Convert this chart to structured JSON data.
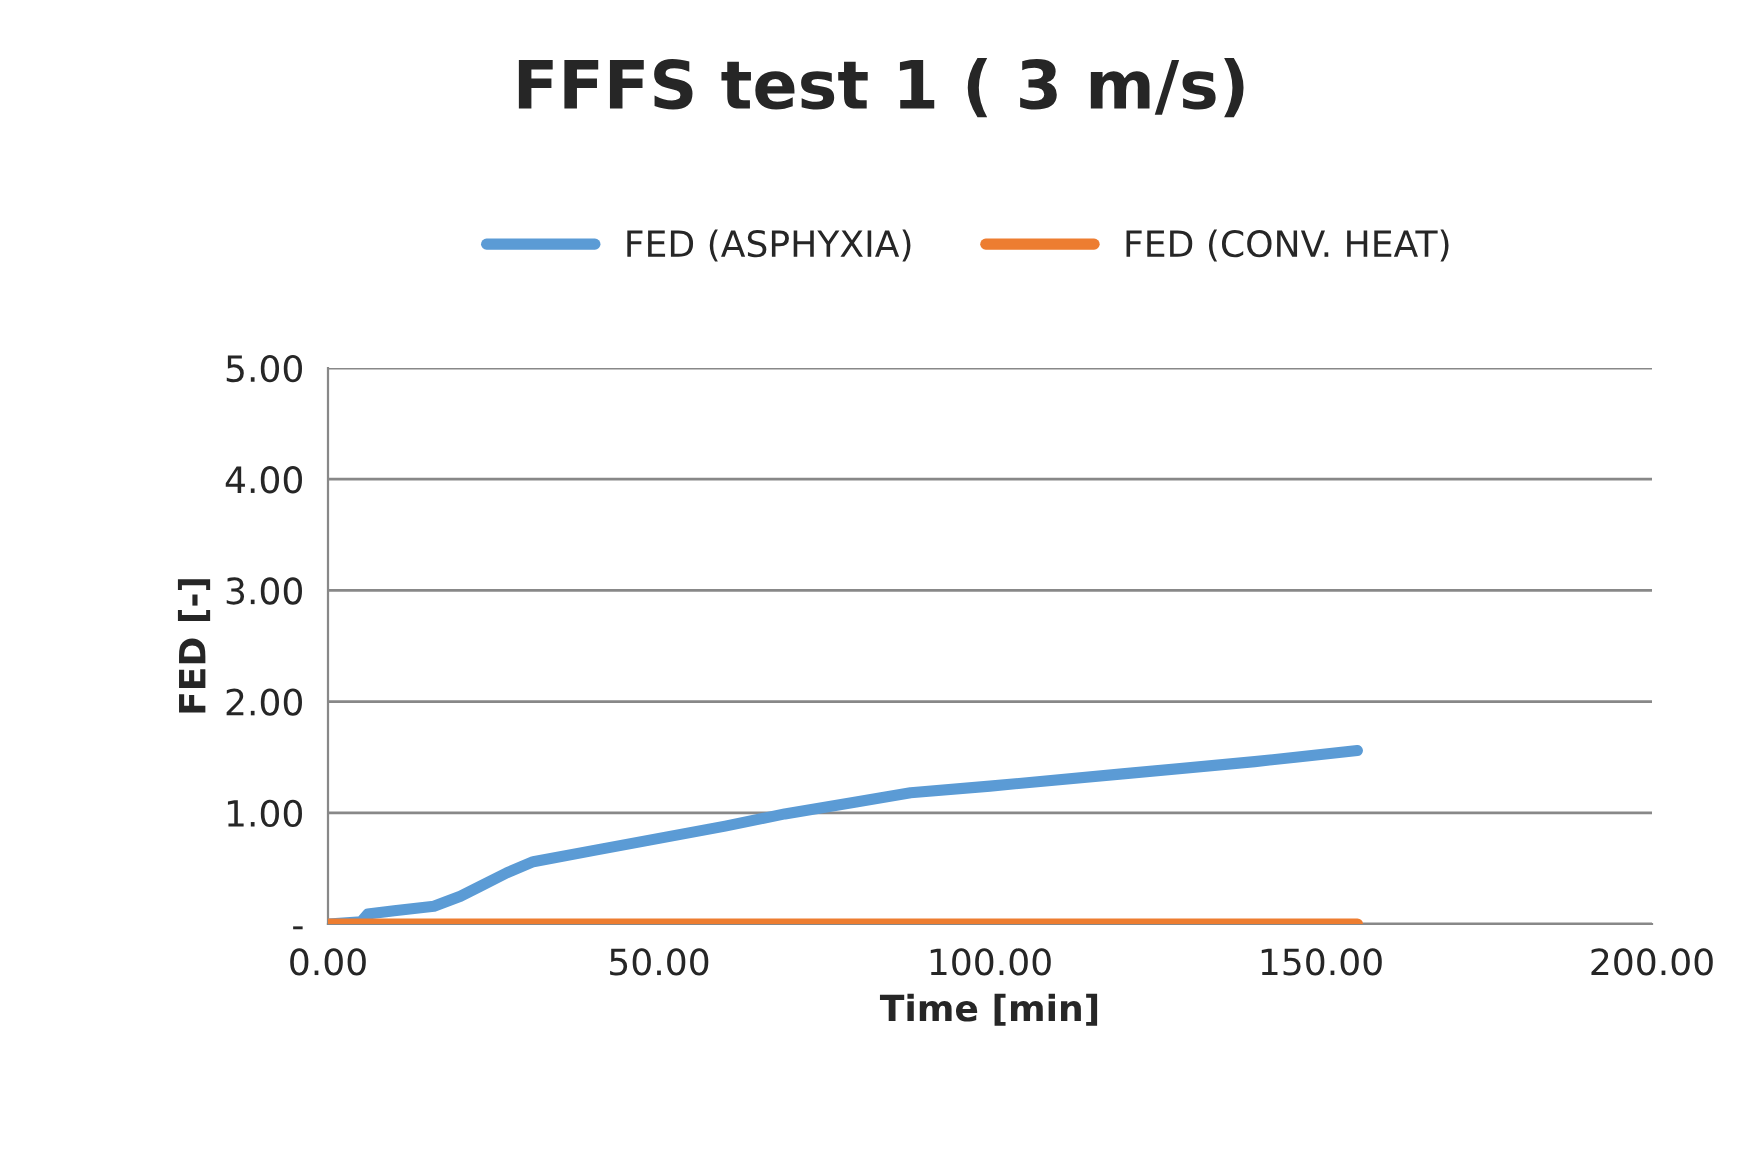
{
  "chart_data": {
    "type": "line",
    "title": "FFFS test 1 ( 3 m/s)",
    "xlabel": "Time [min]",
    "ylabel": "FED [-]",
    "xlim": [
      0,
      200
    ],
    "xticks": [
      {
        "value": 0,
        "label": "0.00"
      },
      {
        "value": 50,
        "label": "50.00"
      },
      {
        "value": 100,
        "label": "100.00"
      },
      {
        "value": 150,
        "label": "150.00"
      },
      {
        "value": 200,
        "label": "200.00"
      }
    ],
    "ylim": [
      0,
      5
    ],
    "yticks": [
      {
        "value": 0,
        "label": "-"
      },
      {
        "value": 1,
        "label": "1.00"
      },
      {
        "value": 2,
        "label": "2.00"
      },
      {
        "value": 3,
        "label": "3.00"
      },
      {
        "value": 4,
        "label": "4.00"
      },
      {
        "value": 5,
        "label": "5.00"
      }
    ],
    "grid": "y",
    "legend": "top",
    "marker": "none",
    "line_style": "solid",
    "series": [
      {
        "name": "FED (ASPHYXIA)",
        "color": "#5b9bd5",
        "x": [
          0,
          5,
          6,
          10,
          16,
          20,
          23,
          27,
          31,
          40,
          50,
          60,
          69,
          80,
          88,
          100,
          120,
          140,
          155.5
        ],
        "values": [
          0,
          0.02,
          0.09,
          0.12,
          0.16,
          0.25,
          0.34,
          0.46,
          0.56,
          0.66,
          0.77,
          0.88,
          0.99,
          1.1,
          1.18,
          1.24,
          1.35,
          1.46,
          1.56
        ]
      },
      {
        "name": "FED (CONV. HEAT)",
        "color": "#ed7d31",
        "x": [
          0,
          50,
          100,
          155.5
        ],
        "values": [
          0,
          0,
          0,
          0
        ]
      }
    ]
  }
}
